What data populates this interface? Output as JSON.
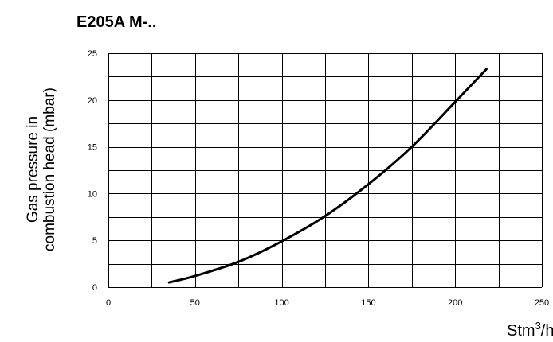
{
  "chart_data": {
    "type": "line",
    "title": "E205A M-..",
    "ylabel_lines": [
      "Gas pressure in",
      "combustion head (mbar)"
    ],
    "xlabel_unit": "Stm",
    "xlabel_unit_sup": "3",
    "xlabel_unit_suffix": "/h",
    "xlim": [
      0,
      250
    ],
    "ylim": [
      0,
      25
    ],
    "x_ticks": [
      0,
      50,
      100,
      150,
      200,
      250
    ],
    "y_ticks": [
      0,
      5,
      10,
      15,
      20,
      25
    ],
    "x_tick_labels": [
      "0",
      "50",
      "100",
      "150",
      "200",
      "250"
    ],
    "y_tick_labels": [
      "0",
      "5",
      "10",
      "15",
      "20",
      "25"
    ],
    "x_grid": [
      0,
      25,
      50,
      75,
      100,
      125,
      150,
      175,
      200,
      225,
      250
    ],
    "y_grid": [
      0,
      2.5,
      5,
      7.5,
      10,
      12.5,
      15,
      17.5,
      20,
      22.5,
      25
    ],
    "grid": true,
    "series": [
      {
        "color": "#000000",
        "x": [
          35,
          50,
          75,
          100,
          125,
          150,
          175,
          200,
          218
        ],
        "y": [
          0.5,
          1.2,
          2.7,
          4.9,
          7.6,
          11.0,
          15.0,
          19.8,
          23.3
        ]
      }
    ]
  }
}
